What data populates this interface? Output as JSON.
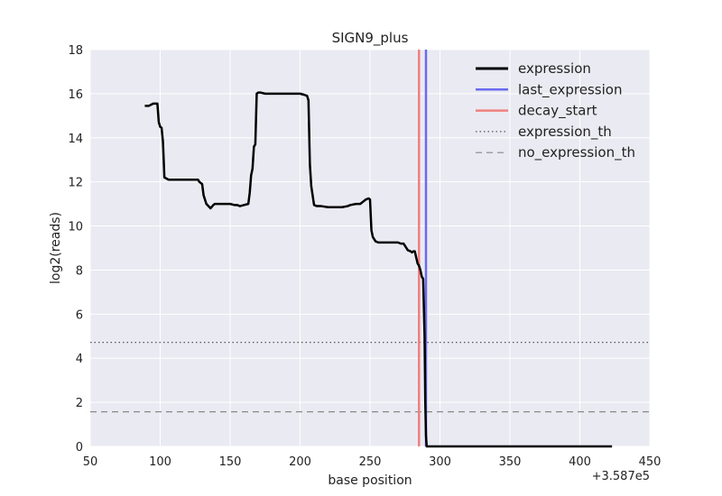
{
  "chart_data": {
    "type": "line",
    "title": "SIGN9_plus",
    "xlabel": "base position",
    "ylabel": "log2(reads)",
    "x_offset_label": "+3.587e5",
    "xlim": [
      50,
      450
    ],
    "ylim": [
      0,
      18
    ],
    "x_ticks": [
      "50",
      "100",
      "150",
      "200",
      "250",
      "300",
      "350",
      "400",
      "450"
    ],
    "y_ticks": [
      "0",
      "2",
      "4",
      "6",
      "8",
      "10",
      "12",
      "14",
      "16",
      "18"
    ],
    "grid": true,
    "legend_position": "top-right",
    "colors": {
      "background": "#eaeaf2",
      "grid": "#ffffff",
      "expression": "#000000",
      "last_expression": "#6a6af0",
      "decay_start": "#f08080",
      "threshold": "#555555",
      "dashed_threshold": "#888888"
    },
    "series": [
      {
        "name": "expression",
        "style": "solid",
        "x": [
          89,
          92,
          95,
          98,
          99,
          100,
          101,
          102,
          103,
          106,
          110,
          115,
          120,
          125,
          127,
          128,
          130,
          131,
          133,
          136,
          138,
          139,
          140,
          145,
          150,
          153,
          155,
          157,
          160,
          163,
          164,
          165,
          166,
          167,
          168,
          169,
          170,
          172,
          175,
          180,
          190,
          200,
          203,
          205,
          206,
          207,
          208,
          210,
          212,
          215,
          220,
          225,
          230,
          234,
          236,
          240,
          243,
          245,
          247,
          249,
          250,
          251,
          252,
          254,
          256,
          258,
          260,
          265,
          270,
          272,
          274,
          275,
          277,
          279,
          280,
          281,
          282,
          284,
          285,
          286,
          287,
          288,
          289,
          289.5,
          290,
          290.5,
          300,
          350,
          400,
          423
        ],
        "y": [
          15.45,
          15.45,
          15.55,
          15.55,
          14.7,
          14.5,
          14.45,
          13.8,
          12.2,
          12.1,
          12.1,
          12.1,
          12.1,
          12.1,
          12.1,
          12.0,
          11.9,
          11.4,
          11.0,
          10.8,
          10.95,
          11.0,
          11.0,
          11.0,
          11.0,
          10.95,
          10.95,
          10.9,
          10.95,
          11.0,
          11.5,
          12.3,
          12.6,
          13.6,
          13.7,
          16.0,
          16.05,
          16.05,
          16.0,
          16.0,
          16.0,
          16.0,
          15.95,
          15.9,
          15.7,
          12.8,
          11.8,
          10.95,
          10.9,
          10.9,
          10.85,
          10.85,
          10.85,
          10.9,
          10.95,
          11.0,
          11.0,
          11.1,
          11.2,
          11.25,
          11.2,
          9.8,
          9.5,
          9.3,
          9.25,
          9.25,
          9.25,
          9.25,
          9.25,
          9.2,
          9.2,
          9.1,
          8.9,
          8.85,
          8.8,
          8.85,
          8.85,
          8.3,
          8.2,
          8.0,
          7.7,
          7.6,
          5.0,
          2.0,
          0.5,
          0,
          0,
          0,
          0,
          0
        ]
      }
    ],
    "vlines": [
      {
        "name": "last_expression",
        "x": 290
      },
      {
        "name": "decay_start",
        "x": 285
      }
    ],
    "hlines": [
      {
        "name": "expression_th",
        "y": 4.72,
        "style": "dotted"
      },
      {
        "name": "no_expression_th",
        "y": 1.57,
        "style": "dashed"
      }
    ],
    "legend": [
      {
        "label": "expression",
        "style": "solid",
        "color_key": "expression"
      },
      {
        "label": "last_expression",
        "style": "solid",
        "color_key": "last_expression"
      },
      {
        "label": "decay_start",
        "style": "solid",
        "color_key": "decay_start"
      },
      {
        "label": "expression_th",
        "style": "dotted",
        "color_key": "threshold"
      },
      {
        "label": "no_expression_th",
        "style": "dashed",
        "color_key": "dashed_threshold"
      }
    ]
  }
}
